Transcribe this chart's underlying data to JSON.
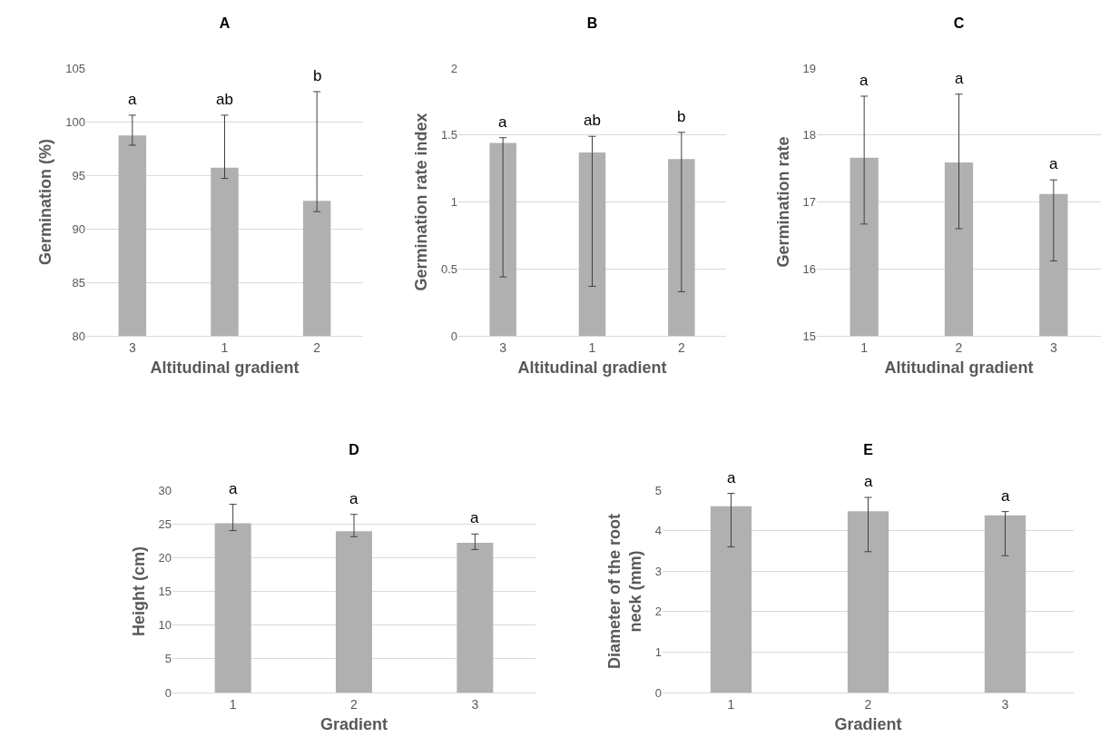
{
  "chart_data": [
    {
      "type": "bar",
      "title": "A",
      "xlabel": "Altitudinal gradient",
      "ylabel": "Germination (%)",
      "categories": [
        "3",
        "1",
        "2"
      ],
      "values": [
        98.7,
        95.7,
        92.6
      ],
      "color": "#b0b0b0",
      "errors": [
        [
          97.8,
          100.6
        ],
        [
          94.7,
          100.6
        ],
        [
          91.6,
          102.8
        ]
      ],
      "ylim": [
        80,
        105
      ],
      "yticks": [
        80,
        85,
        90,
        95,
        100,
        105
      ],
      "grid": "y",
      "annotations": [
        "a",
        "ab",
        "b"
      ]
    },
    {
      "type": "bar",
      "title": "B",
      "xlabel": "Altitudinal gradient",
      "ylabel": "Germination rate index",
      "categories": [
        "3",
        "1",
        "2"
      ],
      "values": [
        1.44,
        1.37,
        1.32
      ],
      "color": "#b0b0b0",
      "errors": [
        [
          0.44,
          1.48
        ],
        [
          0.37,
          1.49
        ],
        [
          0.33,
          1.52
        ]
      ],
      "ylim": [
        0,
        2
      ],
      "yticks": [
        0,
        0.5,
        1,
        1.5,
        2
      ],
      "grid": "y",
      "annotations": [
        "a",
        "ab",
        "b"
      ]
    },
    {
      "type": "bar",
      "title": "C",
      "xlabel": "Altitudinal gradient",
      "ylabel": "Germination rate",
      "categories": [
        "1",
        "2",
        "3"
      ],
      "values": [
        17.66,
        17.59,
        17.12
      ],
      "color": "#b0b0b0",
      "errors": [
        [
          16.67,
          18.58
        ],
        [
          16.6,
          18.61
        ],
        [
          16.12,
          17.33
        ]
      ],
      "ylim": [
        15,
        19
      ],
      "yticks": [
        15,
        16,
        17,
        18,
        19
      ],
      "grid": "y",
      "annotations": [
        "a",
        "a",
        "a"
      ]
    },
    {
      "type": "bar",
      "title": "D",
      "xlabel": "Gradient",
      "ylabel": "Height (cm)",
      "categories": [
        "1",
        "2",
        "3"
      ],
      "values": [
        25.1,
        23.9,
        22.2
      ],
      "color": "#b0b0b0",
      "errors": [
        [
          24.0,
          27.9
        ],
        [
          23.1,
          26.4
        ],
        [
          21.2,
          23.5
        ]
      ],
      "ylim": [
        0,
        30
      ],
      "yticks": [
        0,
        5,
        10,
        15,
        20,
        25,
        30
      ],
      "grid": "y",
      "annotations": [
        "a",
        "a",
        "a"
      ]
    },
    {
      "type": "bar",
      "title": "E",
      "xlabel": "Gradient",
      "ylabel": "Diameter of the root neck (mm)",
      "categories": [
        "1",
        "2",
        "3"
      ],
      "values": [
        4.6,
        4.48,
        4.38
      ],
      "color": "#b0b0b0",
      "errors": [
        [
          3.6,
          4.92
        ],
        [
          3.48,
          4.82
        ],
        [
          3.38,
          4.47
        ]
      ],
      "ylim": [
        0,
        5
      ],
      "yticks": [
        0,
        1,
        2,
        3,
        4,
        5
      ],
      "grid": "y",
      "annotations": [
        "a",
        "a",
        "a"
      ]
    }
  ]
}
